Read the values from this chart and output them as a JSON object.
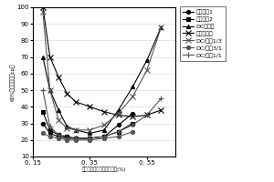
{
  "xlabel": "对碳酸钙重量的分散剂用量(%)",
  "ylabel": "60%分散液粘度（cp）",
  "xlim": [
    0.15,
    0.65
  ],
  "ylim": [
    10,
    100
  ],
  "xticks": [
    0.15,
    0.35,
    0.55
  ],
  "xtick_labels": [
    "0. 15",
    "0. 35",
    "0. 55"
  ],
  "yticks": [
    10,
    20,
    30,
    40,
    50,
    60,
    70,
    80,
    90,
    100
  ],
  "legend_labels": [
    "新分散剂1",
    "新分散剂2",
    "DC分散剂",
    "六偏分散剂",
    "DC/六偏1/3",
    "DC/六偏3/1",
    "DC/六偏1/1"
  ],
  "series": {
    "新分散剂1": {
      "x": [
        0.185,
        0.21,
        0.24,
        0.27,
        0.3,
        0.35,
        0.4,
        0.45,
        0.5
      ],
      "y": [
        30,
        24,
        22,
        21,
        21,
        21,
        22,
        29,
        36
      ],
      "marker": "o",
      "color": "#000000",
      "linestyle": "-"
    },
    "新分散剂2": {
      "x": [
        0.185,
        0.21,
        0.24,
        0.27,
        0.3,
        0.35,
        0.4,
        0.45,
        0.5
      ],
      "y": [
        37,
        26,
        23,
        22,
        21,
        21,
        22,
        25,
        30
      ],
      "marker": "s",
      "color": "#000000",
      "linestyle": "-"
    },
    "DC分散剂": {
      "x": [
        0.185,
        0.21,
        0.24,
        0.27,
        0.3,
        0.35,
        0.4,
        0.45,
        0.5,
        0.55,
        0.6
      ],
      "y": [
        70,
        50,
        38,
        28,
        26,
        24,
        26,
        38,
        52,
        68,
        88
      ],
      "marker": "^",
      "color": "#000000",
      "linestyle": "-"
    },
    "六偏分散剂": {
      "x": [
        0.185,
        0.21,
        0.24,
        0.27,
        0.3,
        0.35,
        0.4,
        0.45,
        0.5,
        0.55,
        0.6
      ],
      "y": [
        100,
        70,
        58,
        48,
        43,
        40,
        37,
        35,
        34,
        35,
        38
      ],
      "marker": "x",
      "color": "#000000",
      "linestyle": "-"
    },
    "DC/六偏1/3": {
      "x": [
        0.185,
        0.21,
        0.24,
        0.27,
        0.3,
        0.35,
        0.4,
        0.45,
        0.5,
        0.55,
        0.6
      ],
      "y": [
        97,
        50,
        32,
        27,
        26,
        26,
        29,
        36,
        46,
        62,
        88
      ],
      "marker": "x",
      "color": "#555555",
      "linestyle": "-"
    },
    "DC/六偏3/1": {
      "x": [
        0.185,
        0.21,
        0.24,
        0.27,
        0.3,
        0.35,
        0.4,
        0.45,
        0.5
      ],
      "y": [
        24,
        22,
        21,
        20,
        20,
        20,
        21,
        22,
        25
      ],
      "marker": "o",
      "color": "#555555",
      "linestyle": "-"
    },
    "DC/六偏1/1": {
      "x": [
        0.185,
        0.21,
        0.24,
        0.27,
        0.3,
        0.35,
        0.4,
        0.45,
        0.5,
        0.55,
        0.6
      ],
      "y": [
        50,
        28,
        23,
        21,
        21,
        21,
        22,
        25,
        29,
        35,
        45
      ],
      "marker": "+",
      "color": "#555555",
      "linestyle": "-"
    }
  },
  "marker_sizes": {
    "新分散剂1": 3,
    "新分散剂2": 3,
    "DC分散剂": 3,
    "六偏分散剂": 4,
    "DC/六偏1/3": 4,
    "DC/六偏3/1": 3,
    "DC/六偏1/1": 5
  }
}
